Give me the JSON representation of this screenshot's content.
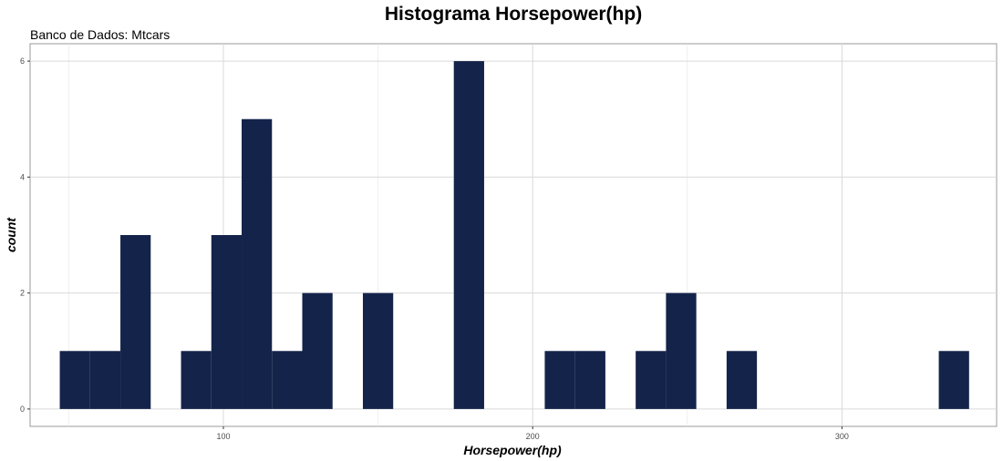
{
  "chart_data": {
    "type": "bar",
    "title": "Histograma Horsepower(hp)",
    "subtitle": "Banco de Dados: Mtcars",
    "xlabel": "Horsepower(hp)",
    "ylabel": "count",
    "xlim": [
      37.5,
      350
    ],
    "ylim": [
      -0.3,
      6.3
    ],
    "x_ticks": [
      100,
      200,
      300
    ],
    "y_ticks": [
      0,
      2,
      4,
      6
    ],
    "grid": true,
    "bar_color": "#14234A",
    "bin_width": 9.8,
    "bins": [
      {
        "x": 52.0,
        "count": 1
      },
      {
        "x": 61.8,
        "count": 1
      },
      {
        "x": 71.6,
        "count": 3
      },
      {
        "x": 81.4,
        "count": 0
      },
      {
        "x": 91.2,
        "count": 1
      },
      {
        "x": 101.0,
        "count": 3
      },
      {
        "x": 110.8,
        "count": 5
      },
      {
        "x": 120.6,
        "count": 1
      },
      {
        "x": 130.4,
        "count": 2
      },
      {
        "x": 140.2,
        "count": 0
      },
      {
        "x": 150.0,
        "count": 2
      },
      {
        "x": 159.8,
        "count": 0
      },
      {
        "x": 169.6,
        "count": 0
      },
      {
        "x": 179.4,
        "count": 6
      },
      {
        "x": 189.2,
        "count": 0
      },
      {
        "x": 199.0,
        "count": 0
      },
      {
        "x": 208.8,
        "count": 1
      },
      {
        "x": 218.6,
        "count": 1
      },
      {
        "x": 228.4,
        "count": 0
      },
      {
        "x": 238.2,
        "count": 1
      },
      {
        "x": 248.0,
        "count": 2
      },
      {
        "x": 257.8,
        "count": 0
      },
      {
        "x": 267.6,
        "count": 1
      },
      {
        "x": 277.4,
        "count": 0
      },
      {
        "x": 287.2,
        "count": 0
      },
      {
        "x": 297.0,
        "count": 0
      },
      {
        "x": 306.8,
        "count": 0
      },
      {
        "x": 316.6,
        "count": 0
      },
      {
        "x": 326.4,
        "count": 0
      },
      {
        "x": 336.2,
        "count": 1
      }
    ]
  }
}
